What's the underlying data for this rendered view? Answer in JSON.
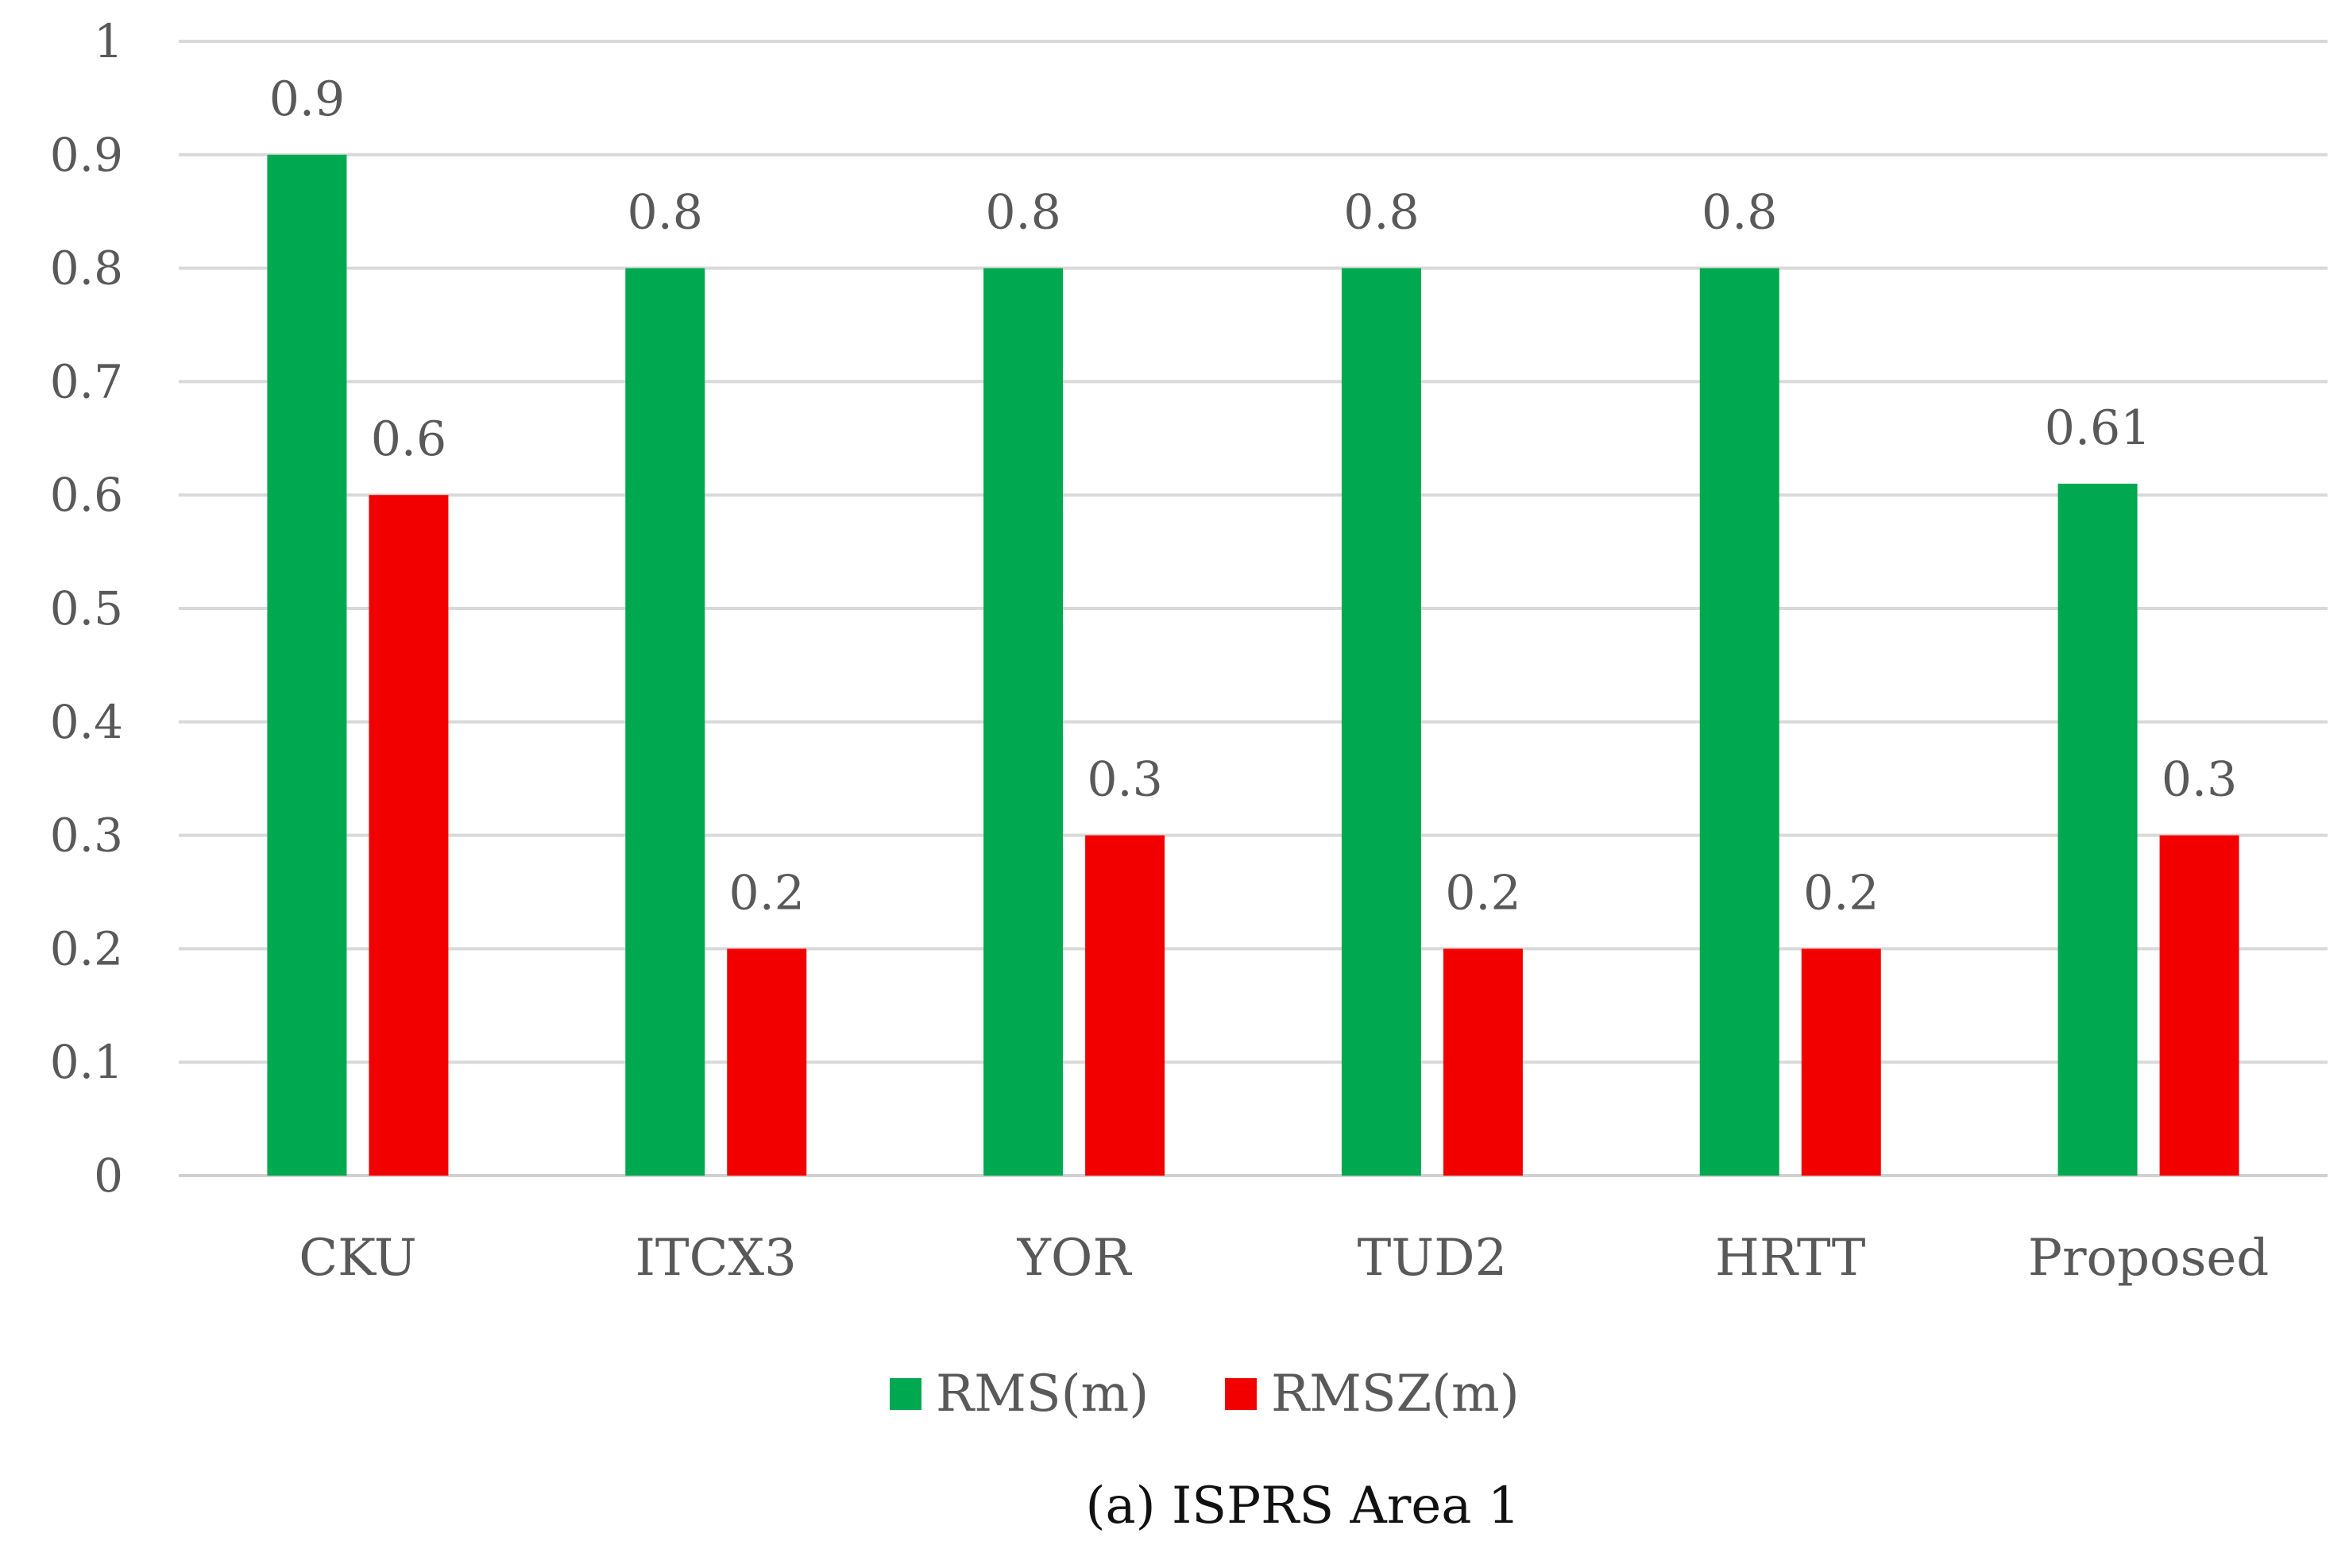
{
  "chart_data": {
    "type": "bar",
    "title": "",
    "caption": "(a) ISPRS Area 1",
    "xlabel": "",
    "ylabel": "",
    "ylim": [
      0,
      1
    ],
    "yticks": [
      0,
      0.1,
      0.2,
      0.3,
      0.4,
      0.5,
      0.6,
      0.7,
      0.8,
      0.9,
      1
    ],
    "ytick_labels": [
      "0",
      "0.1",
      "0.2",
      "0.3",
      "0.4",
      "0.5",
      "0.6",
      "0.7",
      "0.8",
      "0.9",
      "1"
    ],
    "grid": true,
    "legend_position": "bottom",
    "categories": [
      "CKU",
      "ITCX3",
      "YOR",
      "TUD2",
      "HRTT",
      "Proposed"
    ],
    "series": [
      {
        "name": "RMS(m)",
        "color": "#00a94f",
        "values": [
          0.9,
          0.8,
          0.8,
          0.8,
          0.8,
          0.61
        ],
        "labels": [
          "0.9",
          "0.8",
          "0.8",
          "0.8",
          "0.8",
          "0.61"
        ]
      },
      {
        "name": "RMSZ(m)",
        "color": "#f20000",
        "values": [
          0.6,
          0.2,
          0.3,
          0.2,
          0.2,
          0.3
        ],
        "labels": [
          "0.6",
          "0.2",
          "0.3",
          "0.2",
          "0.2",
          "0.3"
        ]
      }
    ]
  }
}
